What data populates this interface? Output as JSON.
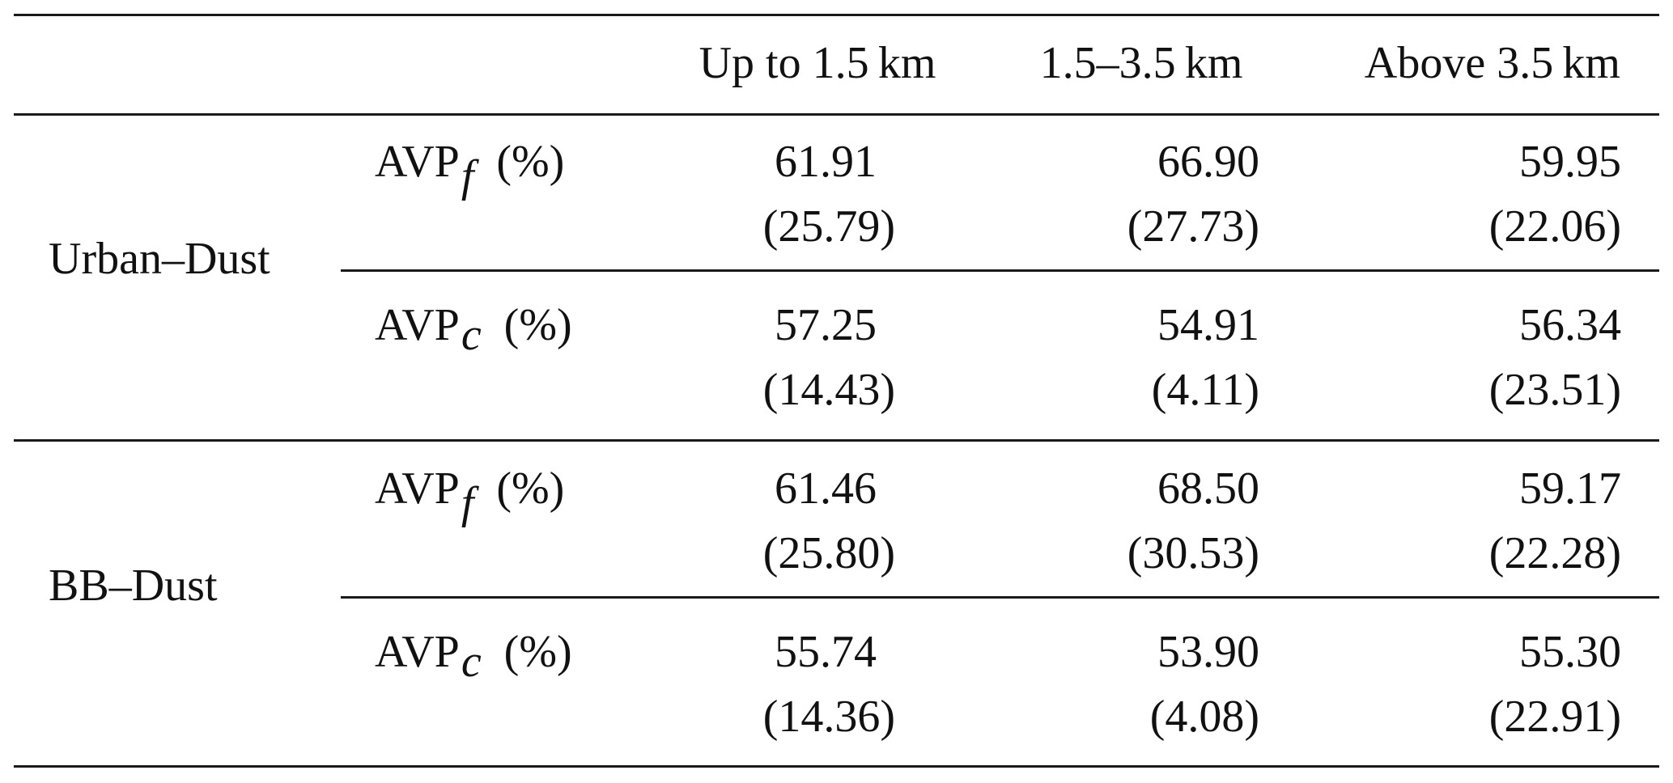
{
  "table": {
    "headers": [
      "",
      "",
      "Up to 1.5 km",
      "1.5–3.5 km",
      "Above 3.5 km"
    ],
    "groups": [
      {
        "name": "Urban–Dust",
        "rows": [
          {
            "metric": "AVP",
            "subscript": "f",
            "unit": "(%)",
            "values": [
              "61.91",
              "66.90",
              "59.95"
            ],
            "sd": [
              "(25.79)",
              "(27.73)",
              "(22.06)"
            ]
          },
          {
            "metric": "AVP",
            "subscript": "c",
            "unit": "(%)",
            "values": [
              "57.25",
              "54.91",
              "56.34"
            ],
            "sd": [
              "(14.43)",
              "(4.11)",
              "(23.51)"
            ]
          }
        ]
      },
      {
        "name": "BB–Dust",
        "rows": [
          {
            "metric": "AVP",
            "subscript": "f",
            "unit": "(%)",
            "values": [
              "61.46",
              "68.50",
              "59.17"
            ],
            "sd": [
              "(25.80)",
              "(30.53)",
              "(22.28)"
            ]
          },
          {
            "metric": "AVP",
            "subscript": "c",
            "unit": "(%)",
            "values": [
              "55.74",
              "53.90",
              "55.30"
            ],
            "sd": [
              "(14.36)",
              "(4.08)",
              "(22.91)"
            ]
          }
        ]
      }
    ]
  }
}
